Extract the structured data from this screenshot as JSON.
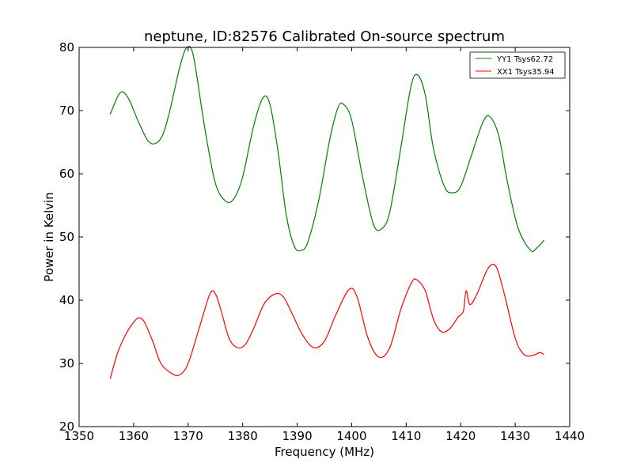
{
  "chart_data": {
    "type": "line",
    "title": "neptune, ID:82576 Calibrated On-source spectrum",
    "xlabel": "Frequency (MHz)",
    "ylabel": "Power in Kelvin",
    "xlim": [
      1350,
      1440
    ],
    "ylim": [
      20,
      80
    ],
    "xticks": [
      1350,
      1360,
      1370,
      1380,
      1390,
      1400,
      1410,
      1420,
      1430,
      1440
    ],
    "yticks": [
      20,
      30,
      40,
      50,
      60,
      70,
      80
    ],
    "grid": false,
    "legend_position": "top-right",
    "series": [
      {
        "name": "YY1 Tsys62.72",
        "color": "#008000",
        "x": [
          1355.7,
          1357.5,
          1359,
          1361,
          1363,
          1365,
          1366.5,
          1368.5,
          1369.8,
          1371,
          1373,
          1375,
          1377,
          1378.5,
          1380,
          1382,
          1383.7,
          1385,
          1386.5,
          1388,
          1389.5,
          1390.8,
          1392,
          1394,
          1396,
          1397.5,
          1398.5,
          1400,
          1402,
          1404,
          1405.5,
          1407,
          1409,
          1410.8,
          1412,
          1413.5,
          1415,
          1417,
          1418.5,
          1420,
          1422,
          1424,
          1425.3,
          1427,
          1428.5,
          1430.5,
          1432.8,
          1434,
          1435.3
        ],
        "y": [
          69.4,
          72.8,
          72.0,
          68.0,
          64.9,
          65.6,
          69.5,
          77.0,
          80.0,
          78.5,
          67.5,
          58.5,
          55.6,
          56.2,
          59.5,
          67.5,
          72.0,
          71.0,
          63.5,
          53.5,
          48.5,
          47.9,
          49.3,
          56.0,
          65.5,
          70.5,
          71.0,
          68.5,
          59.5,
          52.0,
          51.3,
          54.0,
          64.0,
          73.5,
          75.7,
          72.5,
          64.0,
          58.0,
          57.0,
          58.0,
          63.0,
          68.0,
          69.1,
          66.0,
          59.0,
          51.5,
          47.9,
          48.3,
          49.5
        ]
      },
      {
        "name": "XX1 Tsys35.94",
        "color": "#ff0000",
        "x": [
          1355.7,
          1357,
          1358.5,
          1360,
          1361,
          1362,
          1363.5,
          1365,
          1367,
          1368.5,
          1370,
          1372,
          1374,
          1375,
          1376,
          1377.5,
          1379,
          1380.5,
          1382,
          1384,
          1386,
          1387.5,
          1389,
          1391,
          1393,
          1395,
          1397,
          1399.5,
          1401,
          1403,
          1405,
          1407,
          1409,
          1411,
          1412,
          1413.5,
          1415,
          1416.5,
          1418,
          1419.5,
          1420.5,
          1421,
          1421.7,
          1423,
          1425,
          1426.5,
          1428,
          1430,
          1431.5,
          1433,
          1434.5,
          1435.3
        ],
        "y": [
          27.6,
          31.5,
          34.5,
          36.5,
          37.2,
          36.5,
          33.5,
          30.0,
          28.4,
          28.2,
          30.0,
          35.5,
          41.0,
          41.0,
          38.5,
          34.0,
          32.5,
          33.0,
          35.5,
          39.5,
          41.0,
          40.5,
          38.0,
          34.5,
          32.5,
          33.5,
          37.5,
          41.7,
          40.5,
          34.0,
          31.0,
          32.5,
          38.5,
          42.8,
          43.2,
          41.5,
          37.0,
          35.0,
          35.5,
          37.3,
          38.3,
          41.5,
          39.3,
          41.0,
          45.0,
          45.3,
          41.0,
          34.0,
          31.5,
          31.2,
          31.7,
          31.4
        ]
      }
    ]
  }
}
